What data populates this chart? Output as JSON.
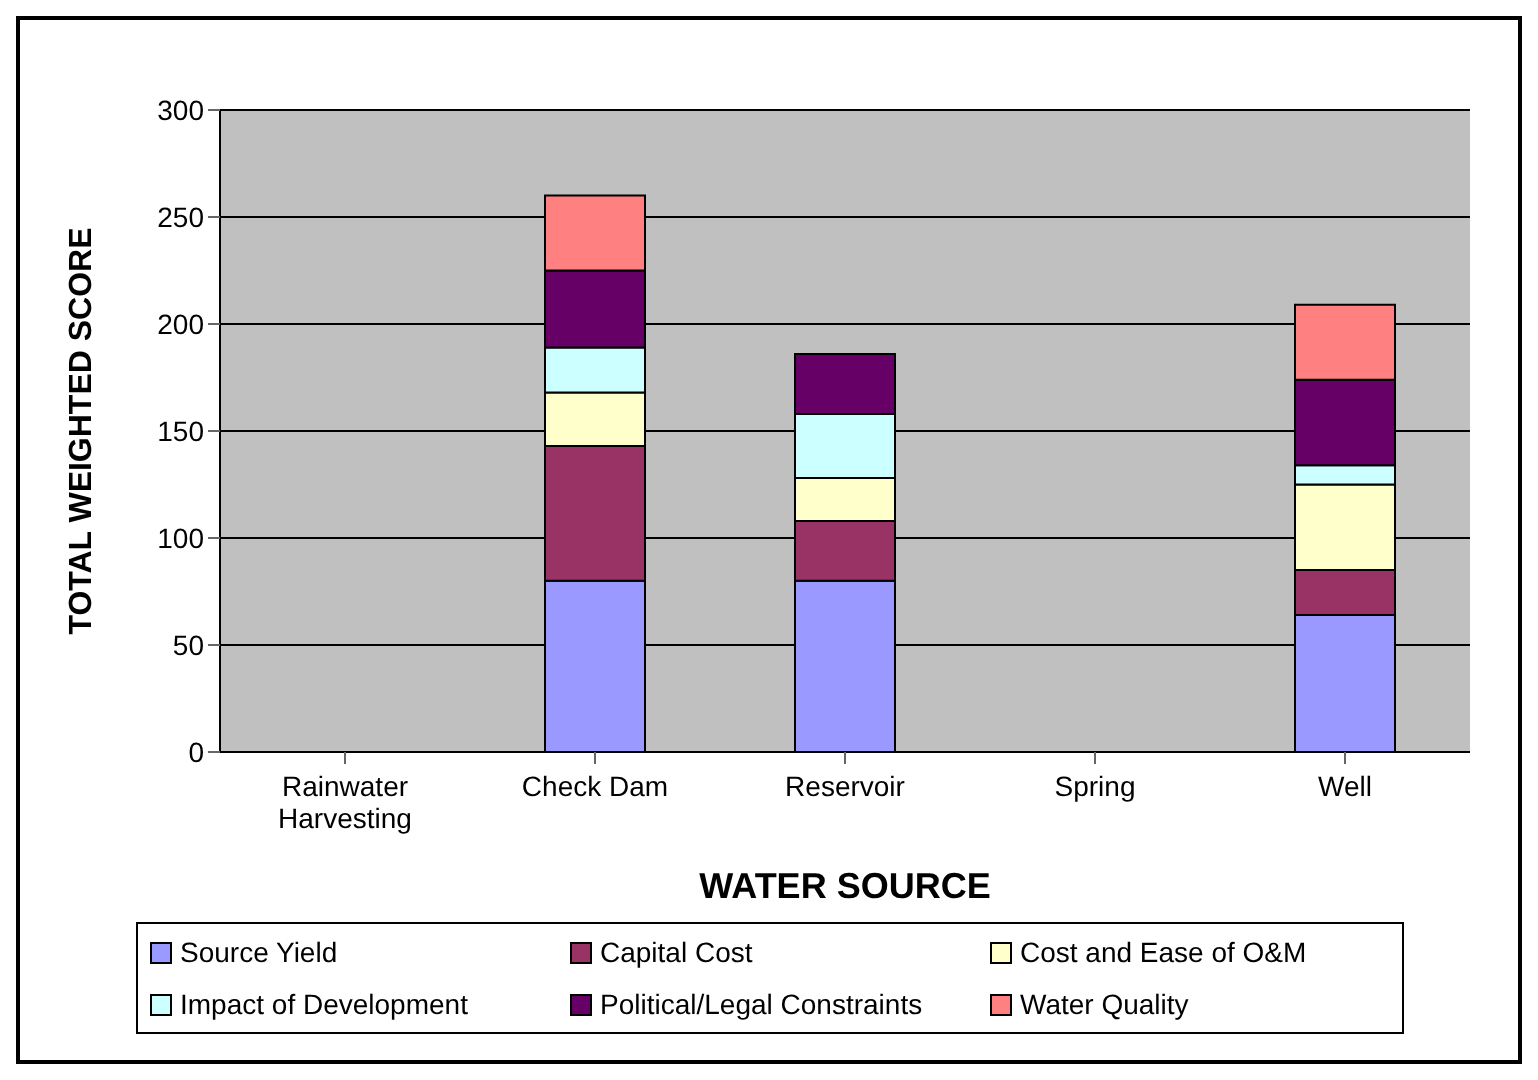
{
  "chart_data": {
    "type": "bar",
    "stacked": true,
    "xlabel": "WATER SOURCE",
    "ylabel": "TOTAL WEIGHTED SCORE",
    "categories": [
      "Rainwater Harvesting",
      "Check Dam",
      "Reservoir",
      "Spring",
      "Well"
    ],
    "series": [
      {
        "name": "Source Yield",
        "color": "#9999ff",
        "values": [
          0,
          80,
          80,
          0,
          64
        ]
      },
      {
        "name": "Capital Cost",
        "color": "#993366",
        "values": [
          0,
          63,
          28,
          0,
          21
        ]
      },
      {
        "name": "Cost and Ease of O&M",
        "color": "#ffffcc",
        "values": [
          0,
          25,
          20,
          0,
          40
        ]
      },
      {
        "name": "Impact of Development",
        "color": "#ccffff",
        "values": [
          0,
          21,
          30,
          0,
          9
        ]
      },
      {
        "name": "Political/Legal Constraints",
        "color": "#660066",
        "values": [
          0,
          36,
          28,
          0,
          40
        ]
      },
      {
        "name": "Water Quality",
        "color": "#ff8080",
        "values": [
          0,
          35,
          0,
          0,
          35
        ]
      }
    ],
    "ylim": [
      0,
      300
    ],
    "yticks": [
      0,
      50,
      100,
      150,
      200,
      250,
      300
    ],
    "grid": "y",
    "legend": "bottom"
  }
}
